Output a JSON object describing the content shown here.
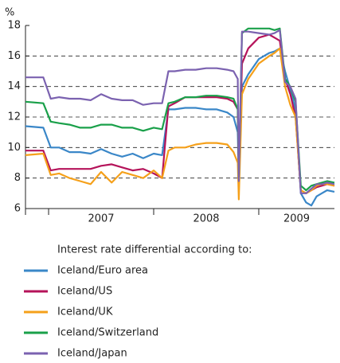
{
  "chart_data": {
    "type": "line",
    "y_label": "%",
    "legend_title": "Interest rate differential according to:",
    "x": [
      2006.78,
      2006.95,
      2007.02,
      2007.1,
      2007.2,
      2007.3,
      2007.4,
      2007.5,
      2007.6,
      2007.7,
      2007.8,
      2007.9,
      2008.0,
      2008.08,
      2008.14,
      2008.2,
      2008.3,
      2008.4,
      2008.5,
      2008.6,
      2008.7,
      2008.76,
      2008.8,
      2008.81,
      2008.84,
      2008.9,
      2009.0,
      2009.1,
      2009.15,
      2009.2,
      2009.25,
      2009.3,
      2009.35,
      2009.4,
      2009.45,
      2009.5,
      2009.55,
      2009.6,
      2009.65,
      2009.72
    ],
    "series": [
      {
        "name": "Iceland/Euro area",
        "color": "#3a87c8",
        "values": [
          11.4,
          11.3,
          10.0,
          10.0,
          9.7,
          9.7,
          9.6,
          9.9,
          9.6,
          9.4,
          9.6,
          9.3,
          9.6,
          9.5,
          12.5,
          12.5,
          12.6,
          12.6,
          12.5,
          12.5,
          12.3,
          12.0,
          11.0,
          7.7,
          14.0,
          14.8,
          15.8,
          16.2,
          16.3,
          16.5,
          15.0,
          13.8,
          12.5,
          7.0,
          6.4,
          6.2,
          6.8,
          7.0,
          7.2,
          7.1
        ]
      },
      {
        "name": "Iceland/US",
        "color": "#b5135a",
        "values": [
          9.8,
          9.8,
          8.5,
          8.6,
          8.6,
          8.6,
          8.6,
          8.8,
          8.9,
          8.7,
          8.5,
          8.6,
          8.3,
          8.0,
          12.7,
          12.9,
          13.3,
          13.3,
          13.3,
          13.3,
          13.2,
          13.0,
          12.5,
          7.7,
          15.5,
          16.5,
          17.2,
          17.4,
          17.2,
          17.0,
          14.5,
          13.5,
          12.0,
          7.2,
          7.0,
          7.2,
          7.4,
          7.5,
          7.6,
          7.5
        ]
      },
      {
        "name": "Iceland/UK",
        "color": "#f5a01a",
        "values": [
          9.5,
          9.6,
          8.2,
          8.3,
          8.0,
          7.8,
          7.6,
          8.4,
          7.7,
          8.4,
          8.2,
          8.0,
          8.5,
          8.0,
          9.8,
          10.0,
          10.0,
          10.2,
          10.3,
          10.3,
          10.2,
          9.7,
          9.0,
          6.6,
          13.5,
          14.5,
          15.5,
          16.0,
          16.2,
          16.5,
          14.0,
          12.8,
          12.0,
          7.2,
          7.0,
          7.2,
          7.5,
          7.6,
          7.6,
          7.5
        ]
      },
      {
        "name": "Iceland/Switzerland",
        "color": "#1aa04a",
        "values": [
          13.0,
          12.9,
          11.7,
          11.6,
          11.5,
          11.3,
          11.3,
          11.5,
          11.5,
          11.3,
          11.3,
          11.1,
          11.3,
          11.2,
          12.9,
          13.0,
          13.3,
          13.3,
          13.4,
          13.4,
          13.3,
          13.2,
          12.5,
          8.0,
          17.5,
          17.8,
          17.8,
          17.8,
          17.7,
          17.8,
          14.5,
          14.0,
          13.0,
          7.5,
          7.2,
          7.5,
          7.6,
          7.7,
          7.8,
          7.7
        ]
      },
      {
        "name": "Iceland/Japan",
        "color": "#7b62b0",
        "values": [
          14.6,
          14.6,
          13.2,
          13.3,
          13.2,
          13.2,
          13.1,
          13.5,
          13.2,
          13.1,
          13.1,
          12.8,
          12.9,
          12.9,
          15.0,
          15.0,
          15.1,
          15.1,
          15.2,
          15.2,
          15.1,
          15.0,
          14.5,
          7.8,
          17.6,
          17.6,
          17.5,
          17.4,
          17.5,
          17.7,
          14.3,
          14.0,
          13.2,
          7.0,
          7.0,
          7.3,
          7.6,
          7.6,
          7.7,
          7.6
        ]
      }
    ],
    "xlim": [
      2006.78,
      2009.72
    ],
    "xticks": [
      {
        "value": 2007,
        "label": "2007"
      },
      {
        "value": 2008,
        "label": "2008"
      },
      {
        "value": 2009,
        "label": "2009"
      }
    ],
    "ylim": [
      6,
      18
    ],
    "yticks": [
      6,
      8,
      10,
      12,
      14,
      16,
      18
    ],
    "grid": true
  }
}
